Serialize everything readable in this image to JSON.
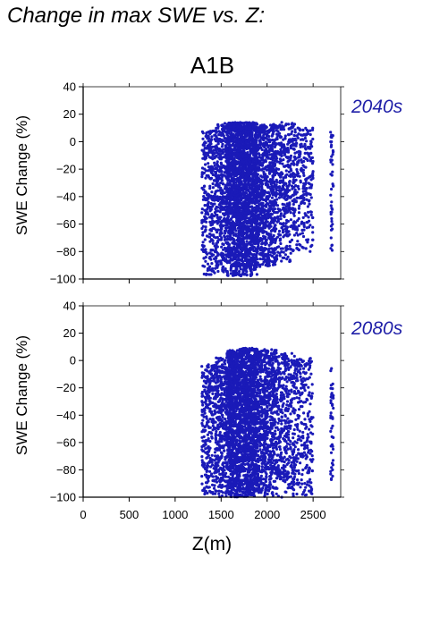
{
  "page_title": "Change in max SWE vs. Z:",
  "scenario": "A1B",
  "colors": {
    "points": "#1a1ab8",
    "period_label": "#1f1fa8",
    "axes": "#000000"
  },
  "chart_data": [
    {
      "type": "scatter",
      "period_label": "2040s",
      "xlabel": "",
      "ylabel": "SWE Change (%)",
      "xlim": [
        0,
        2800
      ],
      "ylim": [
        -100,
        40
      ],
      "yticks": [
        40,
        20,
        0,
        -20,
        -40,
        -60,
        -80,
        -100
      ],
      "ytick_labels": [
        "40",
        "20",
        "0",
        "−20",
        "−40",
        "−60",
        "−80",
        "−100"
      ],
      "xticks": [
        0,
        500,
        1000,
        1500,
        2000,
        2500
      ],
      "xtick_labels": [],
      "clusters": [
        {
          "x_range": [
            1290,
            1440
          ],
          "y_range": [
            -98,
            8
          ],
          "count": 300
        },
        {
          "x_range": [
            1440,
            1560
          ],
          "y_range": [
            -95,
            15
          ],
          "count": 350
        },
        {
          "x_range": [
            1560,
            1700
          ],
          "y_range": [
            -98,
            14
          ],
          "count": 900
        },
        {
          "x_range": [
            1700,
            1900
          ],
          "y_range": [
            -98,
            14
          ],
          "count": 1300
        },
        {
          "x_range": [
            1900,
            2100
          ],
          "y_range": [
            -92,
            13
          ],
          "count": 700
        },
        {
          "x_range": [
            2100,
            2300
          ],
          "y_range": [
            -88,
            14
          ],
          "count": 400
        },
        {
          "x_range": [
            2300,
            2500
          ],
          "y_range": [
            -80,
            10
          ],
          "count": 250
        },
        {
          "x_range": [
            2690,
            2720
          ],
          "y_range": [
            -82,
            9
          ],
          "count": 45
        }
      ]
    },
    {
      "type": "scatter",
      "period_label": "2080s",
      "xlabel": "Z(m)",
      "ylabel": "SWE Change (%)",
      "xlim": [
        0,
        2800
      ],
      "ylim": [
        -100,
        40
      ],
      "yticks": [
        40,
        20,
        0,
        -20,
        -40,
        -60,
        -80,
        -100
      ],
      "ytick_labels": [
        "40",
        "20",
        "0",
        "−20",
        "−40",
        "−60",
        "−80",
        "−100"
      ],
      "xticks": [
        0,
        500,
        1000,
        1500,
        2000,
        2500
      ],
      "xtick_labels": [
        "0",
        "500",
        "1000",
        "1500",
        "2000",
        "2500"
      ],
      "clusters": [
        {
          "x_range": [
            1290,
            1440
          ],
          "y_range": [
            -100,
            -3
          ],
          "count": 300
        },
        {
          "x_range": [
            1440,
            1560
          ],
          "y_range": [
            -100,
            3
          ],
          "count": 350
        },
        {
          "x_range": [
            1560,
            1700
          ],
          "y_range": [
            -100,
            8
          ],
          "count": 900
        },
        {
          "x_range": [
            1700,
            1900
          ],
          "y_range": [
            -100,
            9
          ],
          "count": 1300
        },
        {
          "x_range": [
            1900,
            2100
          ],
          "y_range": [
            -100,
            8
          ],
          "count": 700
        },
        {
          "x_range": [
            2100,
            2300
          ],
          "y_range": [
            -100,
            6
          ],
          "count": 400
        },
        {
          "x_range": [
            2300,
            2500
          ],
          "y_range": [
            -100,
            2
          ],
          "count": 250
        },
        {
          "x_range": [
            2690,
            2720
          ],
          "y_range": [
            -97,
            -5
          ],
          "count": 45
        }
      ]
    }
  ]
}
